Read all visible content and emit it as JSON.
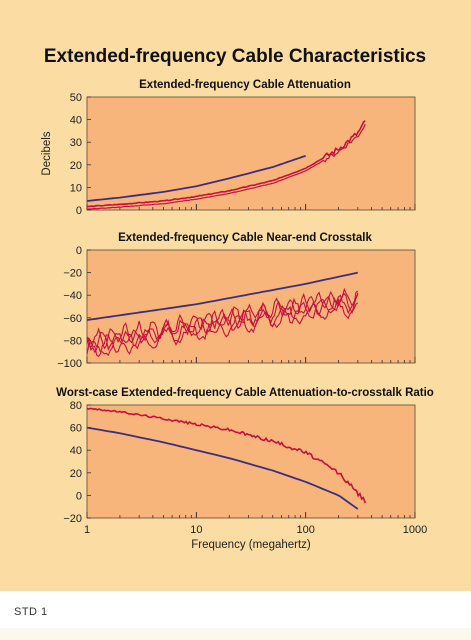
{
  "title": "Extended-frequency Cable Characteristics",
  "caption": "STD 1",
  "colors": {
    "panel": "#fbdca2",
    "plot_area": "#f7b57c",
    "blue_line": "#3a2f7e",
    "red_line": "#c8103c"
  },
  "chart_data": [
    {
      "type": "line",
      "title": "Extended-frequency Cable Attenuation",
      "ylabel": "Decibels",
      "xlabel": "",
      "xscale": "log",
      "xlim": [
        1,
        1000
      ],
      "ylim": [
        0,
        50
      ],
      "yticks": [
        0,
        10,
        20,
        30,
        40,
        50
      ],
      "show_x_tick_labels": false,
      "series": [
        {
          "color": "blue",
          "x": [
            1,
            2,
            5,
            10,
            20,
            50,
            100
          ],
          "y": [
            4,
            5.5,
            8,
            10.5,
            14,
            19,
            24
          ]
        },
        {
          "color": "red",
          "noisy_tail": true,
          "x": [
            1,
            2,
            5,
            10,
            20,
            50,
            100,
            200,
            300,
            350
          ],
          "y": [
            1.5,
            2.5,
            4,
            6,
            8.5,
            13,
            18.5,
            27,
            34,
            39
          ]
        }
      ]
    },
    {
      "type": "line",
      "title": "Extended-frequency Cable Near-end Crosstalk",
      "xlabel": "",
      "ylabel": "",
      "xscale": "log",
      "xlim": [
        1,
        1000
      ],
      "ylim": [
        -100,
        0
      ],
      "yticks": [
        0,
        -20,
        -40,
        -60,
        -80,
        -100
      ],
      "show_x_tick_labels": false,
      "series": [
        {
          "color": "blue",
          "x": [
            1,
            10,
            100,
            300
          ],
          "y": [
            -62,
            -48,
            -30,
            -20
          ]
        },
        {
          "color": "red",
          "noisy_band": true,
          "x": [
            1,
            3,
            10,
            30,
            100,
            300
          ],
          "y": [
            -85,
            -77,
            -68,
            -60,
            -52,
            -45
          ]
        }
      ]
    },
    {
      "type": "line",
      "title": "Worst-case Extended-frequency Cable Attenuation-to-crosstalk Ratio",
      "xlabel": "Frequency (megahertz)",
      "ylabel": "",
      "xscale": "log",
      "xlim": [
        1,
        1000
      ],
      "ylim": [
        -20,
        80
      ],
      "xticks": [
        1,
        10,
        100,
        1000
      ],
      "xtick_labels": [
        "1",
        "10",
        "100",
        "1000"
      ],
      "yticks": [
        80,
        60,
        40,
        20,
        0,
        -20
      ],
      "show_x_tick_labels": true,
      "series": [
        {
          "color": "blue",
          "x": [
            1,
            2,
            5,
            10,
            20,
            50,
            100,
            200,
            300
          ],
          "y": [
            60,
            55,
            47,
            40,
            33,
            22,
            12,
            0,
            -12
          ]
        },
        {
          "color": "red",
          "noisy_tail": true,
          "x": [
            1,
            2,
            5,
            10,
            20,
            50,
            100,
            200,
            350
          ],
          "y": [
            77,
            74,
            68,
            63,
            58,
            48,
            38,
            20,
            -5
          ]
        }
      ]
    }
  ]
}
